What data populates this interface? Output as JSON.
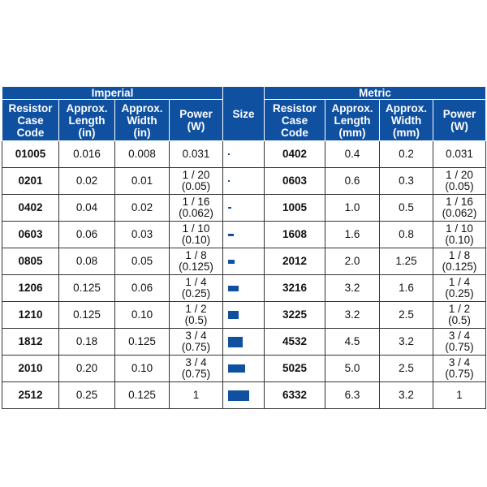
{
  "header": {
    "imperial": "Imperial",
    "metric": "Metric",
    "size": "Size",
    "imperial_cols": [
      [
        "Resistor",
        "Case",
        "Code"
      ],
      [
        "Approx.",
        "Length",
        "(in)"
      ],
      [
        "Approx.",
        "Width",
        "(in)"
      ],
      [
        "Power",
        "(W)"
      ]
    ],
    "metric_cols": [
      [
        "Resistor",
        "Case",
        "Code"
      ],
      [
        "Approx.",
        "Length",
        "(mm)"
      ],
      [
        "Approx.",
        "Width",
        "(mm)"
      ],
      [
        "Power",
        "(W)"
      ]
    ]
  },
  "colors": {
    "header_bg": "#0f50a1",
    "size_chip": "#0f50a1"
  },
  "rows": [
    {
      "imp_code": "01005",
      "imp_len": "0.016",
      "imp_wid": "0.008",
      "imp_pow": [
        "0.031"
      ],
      "met_code": "0402",
      "met_len": "0.4",
      "met_wid": "0.2",
      "met_pow": [
        "0.031"
      ]
    },
    {
      "imp_code": "0201",
      "imp_len": "0.02",
      "imp_wid": "0.01",
      "imp_pow": [
        "1 / 20",
        "(0.05)"
      ],
      "met_code": "0603",
      "met_len": "0.6",
      "met_wid": "0.3",
      "met_pow": [
        "1 / 20",
        "(0.05)"
      ]
    },
    {
      "imp_code": "0402",
      "imp_len": "0.04",
      "imp_wid": "0.02",
      "imp_pow": [
        "1 / 16",
        "(0.062)"
      ],
      "met_code": "1005",
      "met_len": "1.0",
      "met_wid": "0.5",
      "met_pow": [
        "1 / 16",
        "(0.062)"
      ]
    },
    {
      "imp_code": "0603",
      "imp_len": "0.06",
      "imp_wid": "0.03",
      "imp_pow": [
        "1 / 10",
        "(0.10)"
      ],
      "met_code": "1608",
      "met_len": "1.6",
      "met_wid": "0.8",
      "met_pow": [
        "1 / 10",
        "(0.10)"
      ]
    },
    {
      "imp_code": "0805",
      "imp_len": "0.08",
      "imp_wid": "0.05",
      "imp_pow": [
        "1 / 8",
        "(0.125)"
      ],
      "met_code": "2012",
      "met_len": "2.0",
      "met_wid": "1.25",
      "met_pow": [
        "1 / 8",
        "(0.125)"
      ]
    },
    {
      "imp_code": "1206",
      "imp_len": "0.125",
      "imp_wid": "0.06",
      "imp_pow": [
        "1 / 4",
        "(0.25)"
      ],
      "met_code": "3216",
      "met_len": "3.2",
      "met_wid": "1.6",
      "met_pow": [
        "1 / 4",
        "(0.25)"
      ]
    },
    {
      "imp_code": "1210",
      "imp_len": "0.125",
      "imp_wid": "0.10",
      "imp_pow": [
        "1 / 2",
        "(0.5)"
      ],
      "met_code": "3225",
      "met_len": "3.2",
      "met_wid": "2.5",
      "met_pow": [
        "1 / 2",
        "(0.5)"
      ]
    },
    {
      "imp_code": "1812",
      "imp_len": "0.18",
      "imp_wid": "0.125",
      "imp_pow": [
        "3 / 4",
        "(0.75)"
      ],
      "met_code": "4532",
      "met_len": "4.5",
      "met_wid": "3.2",
      "met_pow": [
        "3 / 4",
        "(0.75)"
      ]
    },
    {
      "imp_code": "2010",
      "imp_len": "0.20",
      "imp_wid": "0.10",
      "imp_pow": [
        "3 / 4",
        "(0.75)"
      ],
      "met_code": "5025",
      "met_len": "5.0",
      "met_wid": "2.5",
      "met_pow": [
        "3 / 4",
        "(0.75)"
      ]
    },
    {
      "imp_code": "2512",
      "imp_len": "0.25",
      "imp_wid": "0.125",
      "imp_pow": [
        "1"
      ],
      "met_code": "6332",
      "met_len": "6.3",
      "met_wid": "3.2",
      "met_pow": [
        "1"
      ]
    }
  ]
}
